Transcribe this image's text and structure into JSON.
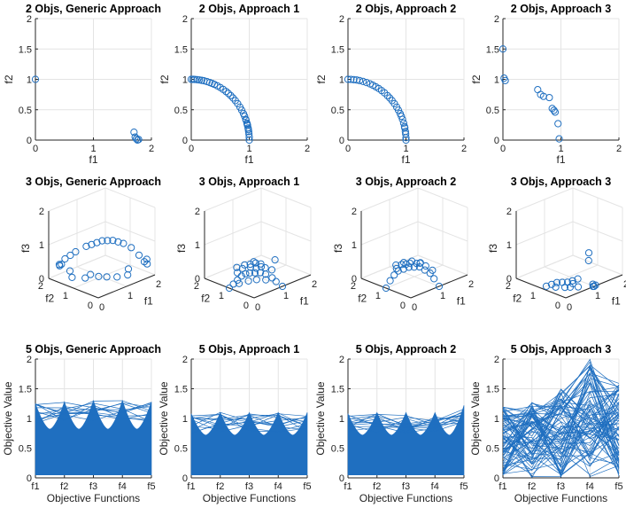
{
  "chart_data": [
    {
      "id": "p1",
      "type": "scatter",
      "title": "2 Objs, Generic Approach",
      "xlabel": "f1",
      "ylabel": "f2",
      "xlim": [
        0,
        2
      ],
      "ylim": [
        0,
        2
      ],
      "xticks": [
        "0",
        "1",
        "2"
      ],
      "yticks": [
        "0",
        "0.5",
        "1",
        "1.5",
        "2"
      ],
      "x": [
        0.0,
        1.7,
        1.72,
        1.74,
        1.76,
        1.78
      ],
      "y": [
        1.0,
        0.13,
        0.05,
        0.02,
        0.0,
        0.01
      ]
    },
    {
      "id": "p2",
      "type": "scatter",
      "title": "2 Objs, Approach 1",
      "xlabel": "f1",
      "ylabel": "f2",
      "xlim": [
        0,
        2
      ],
      "ylim": [
        0,
        2
      ],
      "xticks": [
        "0",
        "1",
        "2"
      ],
      "yticks": [
        "0",
        "0.5",
        "1",
        "1.5",
        "2"
      ],
      "x": [
        0.0,
        0.03,
        0.06,
        0.1,
        0.14,
        0.18,
        0.22,
        0.27,
        0.32,
        0.36,
        0.4,
        0.45,
        0.5,
        0.55,
        0.6,
        0.64,
        0.68,
        0.72,
        0.76,
        0.8,
        0.84,
        0.87,
        0.9,
        0.92,
        0.94,
        0.96,
        0.97,
        0.98,
        0.99,
        1.0,
        1.0,
        0.995,
        0.985,
        0.965,
        0.945
      ],
      "y": [
        1.0,
        1.0,
        0.998,
        0.995,
        0.99,
        0.984,
        0.976,
        0.963,
        0.947,
        0.933,
        0.917,
        0.893,
        0.866,
        0.835,
        0.8,
        0.768,
        0.733,
        0.693,
        0.65,
        0.6,
        0.543,
        0.493,
        0.436,
        0.392,
        0.341,
        0.28,
        0.243,
        0.199,
        0.141,
        0.05,
        0.0,
        0.1,
        0.173,
        0.262,
        0.327
      ]
    },
    {
      "id": "p3",
      "type": "scatter",
      "title": "2 Objs, Approach 2",
      "xlabel": "f1",
      "ylabel": "f2",
      "xlim": [
        0,
        2
      ],
      "ylim": [
        0,
        2
      ],
      "xticks": [
        "0",
        "1",
        "2"
      ],
      "yticks": [
        "0",
        "0.5",
        "1",
        "1.5",
        "2"
      ],
      "x": [
        0.0,
        0.05,
        0.1,
        0.15,
        0.2,
        0.26,
        0.32,
        0.38,
        0.43,
        0.48,
        0.53,
        0.58,
        0.63,
        0.68,
        0.72,
        0.76,
        0.8,
        0.84,
        0.87,
        0.9,
        0.92,
        0.94,
        0.96,
        0.98,
        0.99,
        1.0,
        1.0,
        0.995,
        0.975
      ],
      "y": [
        1.0,
        0.999,
        0.995,
        0.989,
        0.98,
        0.965,
        0.947,
        0.925,
        0.903,
        0.877,
        0.848,
        0.815,
        0.777,
        0.733,
        0.693,
        0.65,
        0.6,
        0.543,
        0.493,
        0.436,
        0.392,
        0.341,
        0.28,
        0.199,
        0.141,
        0.04,
        0.0,
        0.1,
        0.222
      ]
    },
    {
      "id": "p4",
      "type": "scatter",
      "title": "2 Objs, Approach 3",
      "xlabel": "f1",
      "ylabel": "f2",
      "xlim": [
        0,
        2
      ],
      "ylim": [
        0,
        2
      ],
      "xticks": [
        "0",
        "1",
        "2"
      ],
      "yticks": [
        "0",
        "0.5",
        "1",
        "1.5",
        "2"
      ],
      "x": [
        0.0,
        0.02,
        0.04,
        0.6,
        0.65,
        0.7,
        0.8,
        0.85,
        0.88,
        0.9,
        0.95,
        0.97
      ],
      "y": [
        1.5,
        1.02,
        0.98,
        0.83,
        0.75,
        0.72,
        0.7,
        0.52,
        0.49,
        0.46,
        0.27,
        0.02
      ]
    },
    {
      "id": "p5",
      "type": "scatter3d",
      "title": "3 Objs, Generic Approach",
      "xlabel": "f1",
      "ylabel": "f2",
      "zlabel": "f3",
      "xticks": [
        "0",
        "1",
        "2"
      ],
      "yticks": [
        "0",
        "1",
        "2"
      ],
      "zticks": [
        "0",
        "1",
        "2"
      ],
      "points": [
        [
          0.2,
          1.8,
          0.4
        ],
        [
          0.4,
          1.8,
          0.5
        ],
        [
          0.3,
          1.9,
          0.3
        ],
        [
          0.1,
          1.6,
          0.5
        ],
        [
          0.6,
          1.6,
          0.7
        ],
        [
          0.9,
          1.3,
          0.9
        ],
        [
          1.1,
          1.1,
          1.0
        ],
        [
          1.3,
          0.9,
          1.0
        ],
        [
          1.5,
          0.7,
          0.9
        ],
        [
          1.6,
          0.5,
          0.8
        ],
        [
          1.7,
          0.3,
          0.6
        ],
        [
          1.8,
          0.1,
          0.5
        ],
        [
          1.8,
          0.2,
          0.4
        ],
        [
          0.8,
          1.4,
          0.85
        ],
        [
          1.0,
          1.2,
          0.95
        ],
        [
          1.2,
          1.0,
          1.0
        ],
        [
          1.4,
          0.8,
          0.95
        ],
        [
          0.5,
          1.7,
          0.6
        ],
        [
          1.9,
          0.2,
          0.3
        ],
        [
          0.3,
          1.4,
          0.1
        ],
        [
          0.5,
          1.1,
          0.1
        ],
        [
          0.8,
          0.9,
          0.1
        ],
        [
          1.1,
          0.5,
          0.1
        ],
        [
          1.3,
          0.3,
          0.15
        ],
        [
          1.0,
          0.8,
          0.05
        ],
        [
          0.6,
          1.0,
          0.2
        ],
        [
          1.5,
          0.5,
          0.2
        ],
        [
          0.4,
          1.6,
          0.2
        ]
      ]
    },
    {
      "id": "p6",
      "type": "scatter3d",
      "title": "3 Objs, Approach 1",
      "xlabel": "f1",
      "ylabel": "f2",
      "zlabel": "f3",
      "xticks": [
        "0",
        "1",
        "2"
      ],
      "yticks": [
        "0",
        "1",
        "2"
      ],
      "zticks": [
        "0",
        "1",
        "2"
      ],
      "points": [
        [
          0.0,
          1.0,
          0.0
        ],
        [
          0.1,
          0.95,
          0.1
        ],
        [
          0.2,
          0.9,
          0.2
        ],
        [
          0.3,
          0.85,
          0.3
        ],
        [
          0.4,
          0.8,
          0.35
        ],
        [
          0.5,
          0.75,
          0.35
        ],
        [
          0.6,
          0.65,
          0.35
        ],
        [
          0.7,
          0.55,
          0.35
        ],
        [
          0.8,
          0.45,
          0.3
        ],
        [
          0.9,
          0.3,
          0.2
        ],
        [
          1.0,
          0.0,
          0.0
        ],
        [
          0.95,
          0.2,
          0.1
        ],
        [
          0.3,
          0.95,
          0.05
        ],
        [
          0.5,
          0.8,
          0.1
        ],
        [
          0.7,
          0.7,
          0.1
        ],
        [
          0.85,
          0.5,
          0.1
        ],
        [
          0.2,
          0.7,
          0.6
        ],
        [
          0.4,
          0.6,
          0.6
        ],
        [
          0.6,
          0.4,
          0.6
        ],
        [
          0.3,
          0.5,
          0.75
        ],
        [
          0.5,
          0.3,
          0.75
        ],
        [
          0.1,
          0.5,
          0.8
        ],
        [
          0.0,
          0.7,
          0.7
        ],
        [
          0.6,
          0.6,
          0.5
        ],
        [
          0.8,
          0.2,
          0.5
        ],
        [
          1.0,
          0.3,
          0.7
        ],
        [
          0.15,
          0.85,
          0.45
        ],
        [
          0.45,
          0.45,
          0.75
        ],
        [
          0.7,
          0.35,
          0.55
        ],
        [
          0.25,
          0.3,
          0.9
        ]
      ]
    },
    {
      "id": "p7",
      "type": "scatter3d",
      "title": "3 Objs, Approach 2",
      "xlabel": "f1",
      "ylabel": "f2",
      "zlabel": "f3",
      "xticks": [
        "0",
        "1",
        "2"
      ],
      "yticks": [
        "0",
        "1",
        "2"
      ],
      "zticks": [
        "0",
        "1",
        "2"
      ],
      "points": [
        [
          0.0,
          1.0,
          0.0
        ],
        [
          0.1,
          0.95,
          0.2
        ],
        [
          0.2,
          0.9,
          0.35
        ],
        [
          0.3,
          0.85,
          0.45
        ],
        [
          0.4,
          0.75,
          0.5
        ],
        [
          0.5,
          0.65,
          0.55
        ],
        [
          0.6,
          0.55,
          0.55
        ],
        [
          0.7,
          0.45,
          0.55
        ],
        [
          0.8,
          0.35,
          0.45
        ],
        [
          0.9,
          0.25,
          0.35
        ],
        [
          1.0,
          0.0,
          0.0
        ],
        [
          0.95,
          0.15,
          0.2
        ],
        [
          0.2,
          0.6,
          0.75
        ],
        [
          0.4,
          0.5,
          0.75
        ],
        [
          0.6,
          0.3,
          0.75
        ],
        [
          0.3,
          0.3,
          0.9
        ],
        [
          0.5,
          0.2,
          0.8
        ],
        [
          0.1,
          0.4,
          0.9
        ],
        [
          0.0,
          0.6,
          0.8
        ],
        [
          0.7,
          0.2,
          0.65
        ],
        [
          0.35,
          0.6,
          0.7
        ],
        [
          0.55,
          0.4,
          0.72
        ],
        [
          0.15,
          0.75,
          0.6
        ],
        [
          0.85,
          0.1,
          0.5
        ]
      ]
    },
    {
      "id": "p8",
      "type": "scatter3d",
      "title": "3 Objs, Approach 3",
      "xlabel": "f1",
      "ylabel": "f2",
      "zlabel": "f3",
      "xticks": [
        "0",
        "1",
        "2"
      ],
      "yticks": [
        "0",
        "1",
        "2"
      ],
      "zticks": [
        "0",
        "1",
        "2"
      ],
      "points": [
        [
          0.9,
          0.1,
          1.0
        ],
        [
          0.85,
          0.05,
          0.8
        ],
        [
          0.2,
          0.8,
          0.1
        ],
        [
          0.3,
          0.7,
          0.15
        ],
        [
          0.4,
          0.6,
          0.15
        ],
        [
          0.5,
          0.5,
          0.15
        ],
        [
          0.6,
          0.4,
          0.1
        ],
        [
          0.3,
          0.75,
          0.0
        ],
        [
          0.45,
          0.55,
          0.0
        ],
        [
          0.55,
          0.45,
          0.0
        ],
        [
          0.7,
          0.3,
          0.0
        ],
        [
          1.0,
          0.0,
          0.0
        ],
        [
          1.0,
          0.05,
          0.05
        ],
        [
          1.05,
          0.0,
          0.02
        ],
        [
          0.98,
          0.02,
          0.0
        ],
        [
          0.1,
          0.9,
          0.05
        ],
        [
          0.6,
          0.2,
          0.3
        ],
        [
          0.5,
          0.3,
          0.25
        ]
      ]
    },
    {
      "id": "p9",
      "type": "line",
      "title": "5 Objs, Generic Approach",
      "xlabel": "Objective Functions",
      "ylabel": "Objective Value",
      "ylim": [
        0,
        2
      ],
      "categories": [
        "f1",
        "f2",
        "f3",
        "f4",
        "f5"
      ],
      "yticks": [
        "0",
        "0.5",
        "1",
        "1.5",
        "2"
      ],
      "envelope_top": [
        1.25,
        1.28,
        1.3,
        1.3,
        1.28
      ],
      "trough": 0.82,
      "spread": [
        0.05,
        0.35
      ],
      "count": 60
    },
    {
      "id": "p10",
      "type": "line",
      "title": "5 Objs, Approach 1",
      "xlabel": "Objective Functions",
      "ylabel": "Objective Value",
      "ylim": [
        0,
        2
      ],
      "categories": [
        "f1",
        "f2",
        "f3",
        "f4",
        "f5"
      ],
      "yticks": [
        "0",
        "0.5",
        "1",
        "1.5",
        "2"
      ],
      "envelope_top": [
        1.08,
        1.1,
        1.1,
        1.1,
        1.1
      ],
      "trough": 0.72,
      "spread": [
        0.05,
        0.3
      ],
      "count": 60
    },
    {
      "id": "p11",
      "type": "line",
      "title": "5 Objs, Approach 2",
      "xlabel": "Objective Functions",
      "ylabel": "Objective Value",
      "ylim": [
        0,
        2
      ],
      "categories": [
        "f1",
        "f2",
        "f3",
        "f4",
        "f5"
      ],
      "yticks": [
        "0",
        "0.5",
        "1",
        "1.5",
        "2"
      ],
      "envelope_top": [
        1.08,
        1.1,
        1.1,
        1.1,
        1.22
      ],
      "trough": 0.72,
      "spread": [
        0.05,
        0.3
      ],
      "count": 60
    },
    {
      "id": "p12",
      "type": "line",
      "title": "5 Objs, Approach 3",
      "xlabel": "Objective Functions",
      "ylabel": "Objective Value",
      "ylim": [
        0,
        2
      ],
      "categories": [
        "f1",
        "f2",
        "f3",
        "f4",
        "f5"
      ],
      "yticks": [
        "0",
        "0.5",
        "1",
        "1.5",
        "2"
      ],
      "envelope_top": [
        1.2,
        1.3,
        1.5,
        2.0,
        1.6
      ],
      "trough": 0.0,
      "spread": [
        0.0,
        0.0
      ],
      "count": 80
    }
  ]
}
